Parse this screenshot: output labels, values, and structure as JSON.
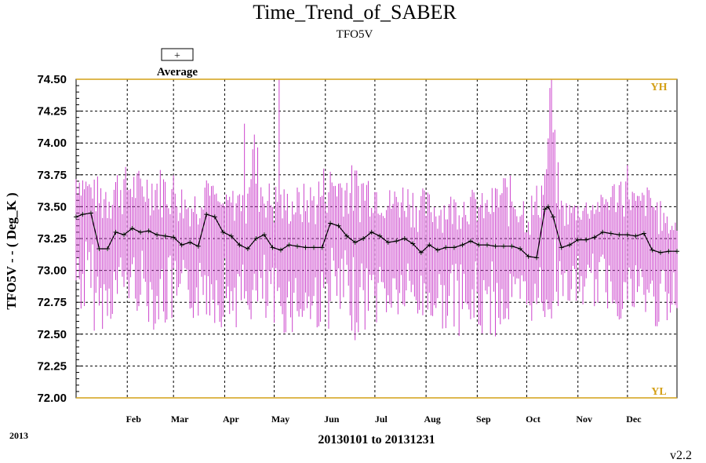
{
  "chart_data": {
    "type": "line",
    "title": "Time_Trend_of_SABER",
    "subtitle": "TFO5V",
    "ylabel": "TFO5V  - - ( Deg_K )",
    "xlabel": "20130101 to 20131231",
    "ylim": [
      72.0,
      74.5
    ],
    "y_ticks": [
      "72.00",
      "72.25",
      "72.50",
      "72.75",
      "73.00",
      "73.25",
      "73.50",
      "73.75",
      "74.00",
      "74.25",
      "74.50"
    ],
    "x_ticks": [
      "Feb",
      "Mar",
      "Apr",
      "May",
      "Jun",
      "Jul",
      "Aug",
      "Sep",
      "Oct",
      "Nov",
      "Dec"
    ],
    "legend": {
      "label": "Average",
      "marker": "+",
      "position": "top-left"
    },
    "limit_lines": {
      "upper": {
        "label": "YH",
        "value": 74.5
      },
      "lower": {
        "label": "YL",
        "value": 72.0
      }
    },
    "grid": true,
    "colors": {
      "range": "#cc44cc",
      "average": "#000000",
      "limits": "#d4a017"
    },
    "series": [
      {
        "name": "Average",
        "x_day_of_year": [
          1,
          5,
          10,
          15,
          20,
          25,
          30,
          35,
          40,
          45,
          50,
          55,
          60,
          65,
          70,
          75,
          80,
          85,
          90,
          95,
          100,
          105,
          110,
          115,
          120,
          125,
          130,
          135,
          140,
          145,
          150,
          155,
          160,
          165,
          170,
          175,
          180,
          185,
          190,
          195,
          200,
          205,
          210,
          215,
          220,
          225,
          230,
          235,
          240,
          245,
          250,
          255,
          260,
          265,
          270,
          275,
          280,
          285,
          287,
          290,
          295,
          300,
          305,
          310,
          315,
          320,
          325,
          330,
          335,
          340,
          345,
          350,
          355,
          360,
          365
        ],
        "values": [
          73.42,
          73.44,
          73.45,
          73.17,
          73.17,
          73.3,
          73.28,
          73.33,
          73.3,
          73.31,
          73.28,
          73.27,
          73.26,
          73.2,
          73.22,
          73.19,
          73.44,
          73.42,
          73.3,
          73.27,
          73.2,
          73.17,
          73.25,
          73.28,
          73.18,
          73.16,
          73.2,
          73.19,
          73.18,
          73.18,
          73.18,
          73.37,
          73.35,
          73.27,
          73.22,
          73.25,
          73.3,
          73.27,
          73.22,
          73.23,
          73.25,
          73.21,
          73.14,
          73.2,
          73.16,
          73.18,
          73.18,
          73.2,
          73.23,
          73.2,
          73.2,
          73.19,
          73.19,
          73.19,
          73.17,
          73.11,
          73.1,
          73.48,
          73.5,
          73.42,
          73.18,
          73.2,
          73.24,
          73.24,
          73.26,
          73.3,
          73.29,
          73.28,
          73.28,
          73.27,
          73.29,
          73.16,
          73.14,
          73.15,
          73.15
        ]
      }
    ],
    "daily_range_envelope": {
      "x_day_of_year": [
        1,
        10,
        20,
        30,
        40,
        50,
        60,
        70,
        80,
        88,
        100,
        105,
        115,
        120,
        130,
        145,
        150,
        160,
        170,
        180,
        190,
        200,
        220,
        240,
        250,
        260,
        275,
        285,
        288,
        295,
        300,
        320,
        335,
        340,
        350,
        360,
        365
      ],
      "high": [
        73.85,
        73.7,
        73.83,
        73.83,
        73.8,
        73.83,
        73.8,
        73.6,
        73.8,
        73.55,
        73.7,
        74.5,
        73.7,
        73.72,
        73.65,
        73.72,
        73.85,
        73.8,
        73.85,
        73.8,
        73.65,
        73.72,
        73.6,
        73.65,
        73.6,
        73.8,
        73.6,
        73.8,
        74.5,
        73.6,
        73.55,
        73.6,
        73.88,
        73.6,
        73.7,
        73.4,
        73.4
      ],
      "low": [
        72.7,
        72.5,
        72.55,
        72.75,
        72.65,
        72.5,
        72.55,
        72.6,
        72.6,
        72.55,
        72.55,
        72.6,
        72.5,
        72.45,
        72.5,
        72.5,
        72.55,
        72.5,
        72.45,
        72.55,
        72.6,
        72.6,
        72.55,
        72.45,
        72.45,
        72.5,
        72.6,
        72.55,
        72.5,
        72.8,
        72.7,
        72.7,
        72.55,
        72.6,
        72.55,
        72.5,
        72.5
      ]
    }
  },
  "footer": {
    "year": "2013",
    "version": "v2.2"
  }
}
